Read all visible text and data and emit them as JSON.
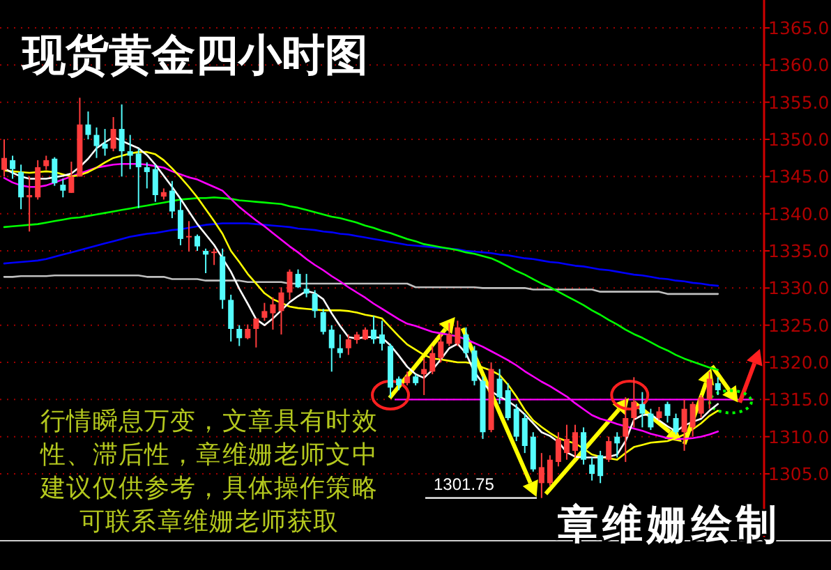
{
  "chart_data": {
    "type": "candlestick",
    "title": "现货黄金四小时图",
    "annotations": [
      "行情瞬息万变，文章具有时效性、滞后性，章维姗老师文中建议仅供参考，具体操作策略可联系章维姗老师获取",
      "章维姗绘制",
      {
        "text": "1301.75",
        "y": 1301.75
      }
    ],
    "categories": [
      null,
      null,
      null,
      null,
      null,
      null,
      null,
      null,
      null,
      null,
      null,
      null,
      null,
      null,
      null,
      null,
      null,
      null,
      null,
      null,
      null,
      null,
      null,
      null,
      null,
      null,
      null,
      null,
      null,
      null,
      null,
      null,
      null,
      null,
      null,
      null,
      null,
      null,
      null,
      null,
      null,
      null,
      null,
      null,
      null,
      null,
      null,
      null,
      null,
      null,
      null,
      null,
      null,
      null,
      null,
      null,
      null,
      null,
      null,
      null,
      null,
      null,
      null,
      null,
      null,
      null,
      null,
      null,
      null,
      null,
      null,
      null,
      null,
      null,
      null,
      null,
      null,
      null,
      null,
      null,
      null,
      null,
      null,
      null,
      null,
      null,
      null,
      null,
      null,
      null,
      null
    ],
    "ohlc": [
      [
        1345.9,
        1350,
        1345,
        1347.5
      ],
      [
        1347.2,
        1347.8,
        1344.7,
        1346
      ],
      [
        1345.6,
        1346.6,
        1340.6,
        1342.2
      ],
      [
        1342.2,
        1345,
        1337.6,
        1342.5
      ],
      [
        1342.2,
        1347.2,
        1341.9,
        1346.25
      ],
      [
        1346.4,
        1347.8,
        1345.9,
        1347.2
      ],
      [
        1347.4,
        1347.6,
        1343.75,
        1344.1
      ],
      [
        1343.9,
        1344.7,
        1342.2,
        1343.1
      ],
      [
        1342.8,
        1347,
        1342.8,
        1345
      ],
      [
        1345,
        1355.6,
        1345,
        1352
      ],
      [
        1352,
        1353.75,
        1350,
        1350.6
      ],
      [
        1350.6,
        1351.6,
        1347.5,
        1349.1
      ],
      [
        1349.4,
        1351.4,
        1347.8,
        1348.75
      ],
      [
        1348.75,
        1353,
        1348.4,
        1351.4
      ],
      [
        1351.4,
        1354.7,
        1345,
        1348.4
      ],
      [
        1348.4,
        1350.6,
        1346,
        1347.8
      ],
      [
        1348.1,
        1348.75,
        1340.75,
        1346.25
      ],
      [
        1346.25,
        1346.9,
        1343.4,
        1345.6
      ],
      [
        1346,
        1346.6,
        1341.6,
        1342.5
      ],
      [
        1342.3,
        1343.4,
        1341.9,
        1342.9
      ],
      [
        1343.1,
        1344.4,
        1339.4,
        1340.3
      ],
      [
        1340.5,
        1341.9,
        1335.75,
        1336.6
      ],
      [
        1336.9,
        1339,
        1334.9,
        1337
      ],
      [
        1337,
        1337.2,
        1335,
        1335.6
      ],
      [
        1335,
        1335.3,
        1332,
        1334.5
      ],
      [
        1334.7,
        1335.3,
        1333.1,
        1334.9
      ],
      [
        1334.25,
        1335.3,
        1327.2,
        1328.4
      ],
      [
        1328.4,
        1329.1,
        1322.8,
        1324.5
      ],
      [
        1324.5,
        1325,
        1322.2,
        1323.25
      ],
      [
        1323.25,
        1325.1,
        1323.1,
        1324.5
      ],
      [
        1324.5,
        1325.9,
        1322,
        1325.9
      ],
      [
        1326,
        1328,
        1325.6,
        1326.9
      ],
      [
        1326.6,
        1328.75,
        1324.4,
        1327.8
      ],
      [
        1326.9,
        1330.1,
        1323.75,
        1329.4
      ],
      [
        1329.4,
        1332.5,
        1328.4,
        1332.2
      ],
      [
        1331.9,
        1332.5,
        1330,
        1330.1
      ],
      [
        1329.9,
        1331.9,
        1328.75,
        1329.25
      ],
      [
        1329.2,
        1329.7,
        1326,
        1326.9
      ],
      [
        1326.75,
        1327.2,
        1323.75,
        1324.1
      ],
      [
        1324.4,
        1325,
        1318.75,
        1321.9
      ],
      [
        1321.9,
        1323.75,
        1320.6,
        1321.25
      ],
      [
        1321.9,
        1323.75,
        1321,
        1323.1
      ],
      [
        1323,
        1324.1,
        1322.5,
        1323.75
      ],
      [
        1323.1,
        1324.7,
        1323,
        1324.4
      ],
      [
        1324.4,
        1326.25,
        1322.5,
        1323.1
      ],
      [
        1323.75,
        1325.6,
        1321.6,
        1322.5
      ],
      [
        1322.2,
        1322.5,
        1315.3,
        1316.6
      ],
      [
        1317.8,
        1318.1,
        1316.25,
        1316.9
      ],
      [
        1317.2,
        1318.75,
        1316.9,
        1318.1
      ],
      [
        1318.1,
        1318.4,
        1316.9,
        1317.2
      ],
      [
        1318.4,
        1320.6,
        1315.6,
        1319.1
      ],
      [
        1318.75,
        1322.2,
        1318.4,
        1321.25
      ],
      [
        1320.6,
        1323.75,
        1320,
        1322.8
      ],
      [
        1322.5,
        1325.3,
        1322.2,
        1323.75
      ],
      [
        1322.5,
        1325.6,
        1322.2,
        1324.7
      ],
      [
        1323.75,
        1324.7,
        1320.6,
        1321.25
      ],
      [
        1321.6,
        1322.2,
        1316.9,
        1317.5
      ],
      [
        1317.5,
        1318.1,
        1309.7,
        1310.6
      ],
      [
        1310.9,
        1320,
        1310.6,
        1319.1
      ],
      [
        1317.8,
        1319.1,
        1314.4,
        1315.3
      ],
      [
        1316.25,
        1317.2,
        1312.2,
        1312.5
      ],
      [
        1313.75,
        1314.4,
        1309.4,
        1310
      ],
      [
        1312.5,
        1313.1,
        1307.8,
        1308.75
      ],
      [
        1310,
        1310.6,
        1305.3,
        1305.6
      ],
      [
        1303.75,
        1307.8,
        1301.75,
        1305.9
      ],
      [
        1303.75,
        1307.5,
        1303.4,
        1306.9
      ],
      [
        1306.6,
        1310.6,
        1306,
        1309.7
      ],
      [
        1307.8,
        1311.6,
        1306.9,
        1309.7
      ],
      [
        1308.1,
        1311.6,
        1307.2,
        1310.6
      ],
      [
        1310.6,
        1311.25,
        1306.25,
        1306.9
      ],
      [
        1306.25,
        1307.2,
        1304.1,
        1305
      ],
      [
        1307.5,
        1308.1,
        1303.75,
        1304.7
      ],
      [
        1306.9,
        1310,
        1306.6,
        1309.4
      ],
      [
        1310,
        1310.6,
        1307.2,
        1309.1
      ],
      [
        1310,
        1315.3,
        1306.6,
        1312.5
      ],
      [
        1312.5,
        1318,
        1311.25,
        1314.7
      ],
      [
        1314.4,
        1316,
        1311.25,
        1313.1
      ],
      [
        1313.1,
        1313.75,
        1310.9,
        1311.25
      ],
      [
        1312.5,
        1314,
        1312.2,
        1313.4
      ],
      [
        1314.4,
        1314.7,
        1311.9,
        1312.8
      ],
      [
        1312.5,
        1313.1,
        1310.3,
        1310.6
      ],
      [
        1310.6,
        1315,
        1308.1,
        1313.75
      ],
      [
        1311.25,
        1314.7,
        1310,
        1314.4
      ],
      [
        1313.1,
        1315.6,
        1312.5,
        1315.3
      ],
      [
        1315,
        1318.75,
        1313.75,
        1317.8
      ],
      [
        1317.2,
        1318,
        1315.6,
        1316.25
      ],
      null,
      null,
      null,
      null,
      null
    ],
    "colors": [
      "#ff3c3c",
      "#54fcfc",
      "#54fcfc",
      "#ff3c3c",
      "#ff3c3c",
      "#ff3c3c",
      "#54fcfc",
      "#54fcfc",
      "#ff3c3c",
      "#ff3c3c",
      "#54fcfc",
      "#54fcfc",
      "#54fcfc",
      "#ff3c3c",
      "#54fcfc",
      "#54fcfc",
      "#54fcfc",
      "#54fcfc",
      "#54fcfc",
      "#ff3c3c",
      "#54fcfc",
      "#54fcfc",
      "#ff3c3c",
      "#54fcfc",
      "#54fcfc",
      "#ff3c3c",
      "#54fcfc",
      "#54fcfc",
      "#54fcfc",
      "#ff3c3c",
      "#ff3c3c",
      "#ff3c3c",
      "#ff3c3c",
      "#ff3c3c",
      "#ff3c3c",
      "#54fcfc",
      "#54fcfc",
      "#54fcfc",
      "#54fcfc",
      "#54fcfc",
      "#54fcfc",
      "#ff3c3c",
      "#ff3c3c",
      "#ff3c3c",
      "#54fcfc",
      "#54fcfc",
      "#54fcfc",
      "#54fcfc",
      "#ff3c3c",
      "#54fcfc",
      "#ff3c3c",
      "#ff3c3c",
      "#ff3c3c",
      "#ff3c3c",
      "#ff3c3c",
      "#54fcfc",
      "#54fcfc",
      "#54fcfc",
      "#ff3c3c",
      "#54fcfc",
      "#54fcfc",
      "#54fcfc",
      "#54fcfc",
      "#54fcfc",
      "#ff3c3c",
      "#ff3c3c",
      "#ff3c3c",
      "#ff3c3c",
      "#ff3c3c",
      "#54fcfc",
      "#54fcfc",
      "#54fcfc",
      "#ff3c3c",
      "#54fcfc",
      "#ff3c3c",
      "#ff3c3c",
      "#54fcfc",
      "#54fcfc",
      "#ff3c3c",
      "#54fcfc",
      "#54fcfc",
      "#ff3c3c",
      "#ff3c3c",
      "#ff3c3c",
      "#ff3c3c",
      "#54fcfc",
      null,
      null,
      null,
      null,
      null
    ],
    "series": [
      {
        "type": "line",
        "color": "#c0c0c0",
        "values": [
          1331.5,
          1331.5,
          1331.6,
          1331.6,
          1331.6,
          1331.6,
          1331.7,
          1331.7,
          1331.7,
          1331.7,
          1331.7,
          1331.7,
          1331.7,
          1331.7,
          1331.7,
          1331.7,
          1331.7,
          1331.5,
          1331.5,
          1331.5,
          1331.2,
          1331.2,
          1331.2,
          1331.2,
          1331.0,
          1331.0,
          1331.0,
          1331.0,
          1331.0,
          1330.8,
          1330.8,
          1330.8,
          1330.8,
          1330.8,
          1330.6,
          1330.6,
          1330.6,
          1330.6,
          1330.6,
          1330.6,
          1330.6,
          1330.6,
          1330.6,
          1330.6,
          1330.6,
          1330.6,
          1330.6,
          1330.6,
          1330.6,
          1330.1,
          1330.1,
          1330.1,
          1330.1,
          1330.1,
          1330.1,
          1330.1,
          1330.1,
          1330.0,
          1330.0,
          1330.0,
          1330.0,
          1330.0,
          1330.0,
          1329.8,
          1329.8,
          1329.8,
          1329.8,
          1329.8,
          1329.8,
          1329.8,
          1329.8,
          1329.5,
          1329.5,
          1329.5,
          1329.5,
          1329.5,
          1329.5,
          1329.5,
          1329.5,
          1329.2,
          1329.2,
          1329.2,
          1329.2,
          1329.2,
          1329.2,
          1329.2,
          null,
          null,
          null,
          null,
          null
        ]
      },
      {
        "type": "line",
        "color": "#0000ff",
        "values": [
          1333.3,
          1333.4,
          1333.5,
          1333.6,
          1333.7,
          1333.9,
          1334.2,
          1334.5,
          1334.8,
          1335.1,
          1335.4,
          1335.7,
          1336.0,
          1336.3,
          1336.6,
          1336.9,
          1337.1,
          1337.3,
          1337.4,
          1337.6,
          1337.8,
          1337.9,
          1338.1,
          1338.3,
          1338.5,
          1338.6,
          1338.7,
          1338.7,
          1338.7,
          1338.7,
          1338.6,
          1338.5,
          1338.4,
          1338.3,
          1338.2,
          1338.0,
          1337.9,
          1337.8,
          1337.6,
          1337.5,
          1337.3,
          1337.2,
          1337.0,
          1336.8,
          1336.6,
          1336.4,
          1336.2,
          1336.0,
          1335.8,
          1335.7,
          1335.6,
          1335.5,
          1335.4,
          1335.3,
          1335.2,
          1335.0,
          1334.9,
          1334.8,
          1334.7,
          1334.5,
          1334.4,
          1334.2,
          1334.0,
          1333.9,
          1333.7,
          1333.5,
          1333.4,
          1333.2,
          1333.0,
          1332.9,
          1332.7,
          1332.5,
          1332.4,
          1332.2,
          1332.0,
          1331.8,
          1331.7,
          1331.5,
          1331.3,
          1331.2,
          1331.0,
          1330.9,
          1330.7,
          1330.6,
          1330.4,
          1330.3,
          null,
          null,
          null,
          null,
          null
        ]
      },
      {
        "type": "line",
        "color": "#00ff00",
        "values": [
          1338.2,
          1338.3,
          1338.4,
          1338.5,
          1338.6,
          1338.8,
          1339.0,
          1339.2,
          1339.4,
          1339.5,
          1339.7,
          1339.9,
          1340.1,
          1340.3,
          1340.5,
          1340.7,
          1340.9,
          1341.1,
          1341.3,
          1341.5,
          1341.7,
          1341.9,
          1342.0,
          1342.1,
          1342.1,
          1342.2,
          1342.1,
          1342.0,
          1341.8,
          1341.7,
          1341.6,
          1341.5,
          1341.4,
          1341.3,
          1341.0,
          1340.8,
          1340.5,
          1340.2,
          1339.9,
          1339.6,
          1339.4,
          1339.1,
          1338.8,
          1338.4,
          1338.1,
          1337.7,
          1337.4,
          1337.0,
          1336.6,
          1336.3,
          1335.9,
          1335.7,
          1335.5,
          1335.3,
          1335.1,
          1334.8,
          1334.6,
          1334.3,
          1334.0,
          1333.5,
          1332.9,
          1332.3,
          1331.8,
          1331.2,
          1330.6,
          1330.1,
          1329.5,
          1328.9,
          1328.3,
          1327.7,
          1327.0,
          1326.4,
          1325.7,
          1325.1,
          1324.4,
          1323.8,
          1323.3,
          1322.7,
          1322.1,
          1321.6,
          1321.0,
          1320.5,
          1320.1,
          1319.7,
          1319.3,
          1319.0,
          null,
          null,
          null,
          null,
          null
        ]
      },
      {
        "type": "line",
        "color": "#ff00ff",
        "values": [
          1344.8,
          1344.2,
          1343.8,
          1343.6,
          1343.6,
          1343.8,
          1344.2,
          1344.6,
          1345.0,
          1345.4,
          1345.8,
          1346.2,
          1346.4,
          1346.6,
          1346.7,
          1346.7,
          1346.7,
          1346.6,
          1346.4,
          1346.2,
          1345.7,
          1345.3,
          1344.9,
          1344.6,
          1344.1,
          1343.6,
          1343.1,
          1342.0,
          1340.9,
          1340.0,
          1339.1,
          1338.3,
          1337.4,
          1336.5,
          1335.6,
          1334.8,
          1333.9,
          1333.1,
          1332.4,
          1331.6,
          1330.9,
          1330.1,
          1329.4,
          1328.7,
          1327.9,
          1327.2,
          1326.5,
          1325.8,
          1325.2,
          1324.9,
          1324.5,
          1324.1,
          1323.9,
          1323.7,
          1323.5,
          1323.1,
          1322.6,
          1322.1,
          1321.5,
          1320.9,
          1320.3,
          1319.6,
          1318.8,
          1318.1,
          1317.4,
          1316.8,
          1316.1,
          1315.4,
          1314.5,
          1313.7,
          1312.9,
          1312.4,
          1312.1,
          1311.7,
          1311.4,
          1311.1,
          1310.8,
          1310.4,
          1310.1,
          1309.8,
          1309.7,
          1309.7,
          1309.8,
          1310.0,
          1310.3,
          1310.7,
          null,
          null,
          null,
          null,
          null
        ]
      },
      {
        "type": "line",
        "color": "#ffff00",
        "values": [
          1345.8,
          1345.7,
          1345.6,
          1345.5,
          1345.6,
          1345.7,
          1345.6,
          1345.3,
          1345.0,
          1345.2,
          1345.6,
          1346.2,
          1346.9,
          1347.5,
          1347.8,
          1348.1,
          1348.3,
          1348.3,
          1348.0,
          1347.2,
          1346.1,
          1344.9,
          1343.6,
          1342.2,
          1340.6,
          1339.0,
          1337.3,
          1335.0,
          1333.5,
          1331.9,
          1330.6,
          1329.3,
          1328.5,
          1328.0,
          1327.5,
          1327.3,
          1327.2,
          1327.1,
          1327.0,
          1327.0,
          1327.0,
          1326.9,
          1326.7,
          1326.4,
          1326.2,
          1325.9,
          1324.7,
          1323.5,
          1322.4,
          1321.7,
          1321.0,
          1320.5,
          1320.4,
          1320.2,
          1320.0,
          1320.0,
          1319.8,
          1319.3,
          1318.9,
          1318.3,
          1317.0,
          1315.4,
          1313.6,
          1312.2,
          1311.3,
          1310.5,
          1309.8,
          1309.4,
          1309.1,
          1308.4,
          1307.6,
          1307.3,
          1307.1,
          1306.9,
          1307.8,
          1308.6,
          1308.9,
          1309.2,
          1309.3,
          1309.4,
          1309.8,
          1310.3,
          1311.0,
          1311.8,
          1312.8,
          1313.5,
          null,
          null,
          null,
          null,
          null
        ]
      },
      {
        "type": "line",
        "color": "#ffffff",
        "values": [
          1346.1,
          1345.5,
          1345.0,
          1344.7,
          1344.7,
          1344.7,
          1344.9,
          1345.1,
          1345.4,
          1346.3,
          1347.4,
          1348.8,
          1349.6,
          1350.3,
          1349.8,
          1349.3,
          1348.8,
          1347.9,
          1346.6,
          1345.1,
          1343.6,
          1342.0,
          1340.3,
          1338.6,
          1337.2,
          1335.8,
          1334.0,
          1332.2,
          1329.9,
          1327.9,
          1325.8,
          1325.0,
          1325.9,
          1327.0,
          1328.1,
          1328.9,
          1329.6,
          1329.3,
          1328.5,
          1326.6,
          1324.9,
          1323.4,
          1323.2,
          1323.4,
          1323.4,
          1323.3,
          1322.3,
          1320.9,
          1319.4,
          1318.4,
          1317.9,
          1319.0,
          1320.4,
          1321.9,
          1322.5,
          1321.2,
          1318.7,
          1317.2,
          1316.1,
          1315.4,
          1314.8,
          1314.0,
          1313.0,
          1311.8,
          1310.6,
          1310.1,
          1309.3,
          1307.9,
          1307.3,
          1307.2,
          1307.2,
          1307.2,
          1307.3,
          1307.6,
          1309.4,
          1312.3,
          1312.9,
          1313.0,
          1312.2,
          1311.4,
          1310.7,
          1311.5,
          1312.0,
          1312.4,
          1313.5,
          1314.4,
          null,
          null,
          null,
          null,
          null
        ]
      }
    ],
    "ref_lines": [
      {
        "axis": "y",
        "value": 1315,
        "color": "#ff00ff"
      },
      {
        "axis": "y",
        "value": 1301.75,
        "color": "#ffffff"
      }
    ],
    "ylim": [
      1296,
      1368.75
    ],
    "yticks": [
      {
        "value": 1305,
        "label": "1305.0"
      },
      {
        "value": 1310,
        "label": "1310.0"
      },
      {
        "value": 1315,
        "label": "1315.0"
      },
      {
        "value": 1320,
        "label": "1320.0"
      },
      {
        "value": 1325,
        "label": "1325.0"
      },
      {
        "value": 1330,
        "label": "1330.0"
      },
      {
        "value": 1335,
        "label": "1335.0"
      },
      {
        "value": 1340,
        "label": "1340.0"
      },
      {
        "value": 1345,
        "label": "1345.0"
      },
      {
        "value": 1350,
        "label": "1350.0"
      },
      {
        "value": 1355,
        "label": "1355.0"
      },
      {
        "value": 1360,
        "label": "1360.0"
      },
      {
        "value": 1365,
        "label": "1365.0"
      }
    ],
    "grid": "y",
    "tick_labels": "y"
  }
}
